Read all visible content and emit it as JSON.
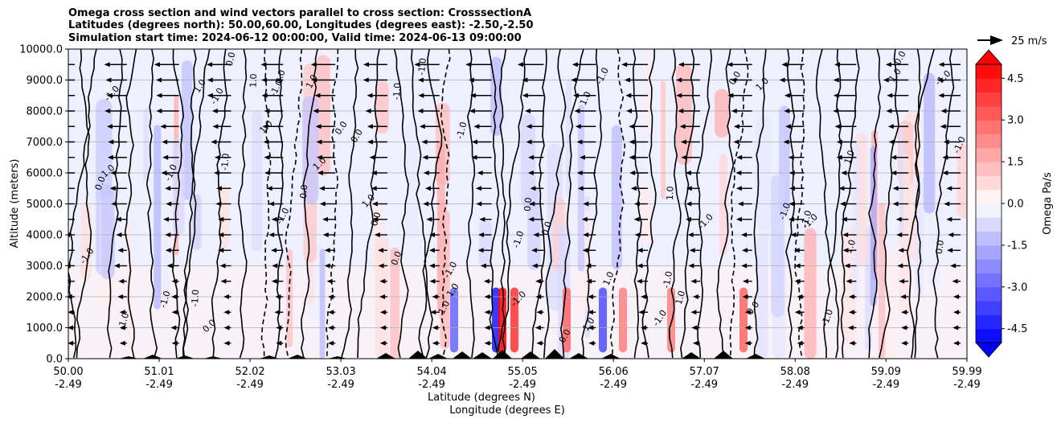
{
  "title_lines": [
    "Omega cross section and wind vectors parallel to cross section: CrosssectionA",
    "Latitudes (degrees north): 50.00,60.00, Longitudes (degrees east): -2.50,-2.50",
    "Simulation start time: 2024-06-12 00:00:00, Valid time: 2024-06-13 09:00:00"
  ],
  "chart_data": {
    "type": "heatmap",
    "subtype": "cross-section contour with wind vectors",
    "y_axis": {
      "label": "Altitude (meters)",
      "range": [
        0,
        10000
      ],
      "ticks": [
        "0.0",
        "1000.0",
        "2000.0",
        "3000.0",
        "4000.0",
        "5000.0",
        "6000.0",
        "7000.0",
        "8000.0",
        "9000.0",
        "10000.0"
      ],
      "tick_values": [
        0,
        1000,
        2000,
        3000,
        4000,
        5000,
        6000,
        7000,
        8000,
        9000,
        10000
      ],
      "grid": true
    },
    "x_axis": {
      "label_line1": "Latitude (degrees N)",
      "label_line2": "Longitude (degrees E)",
      "range": [
        50.0,
        59.99
      ],
      "tick_values": [
        50.0,
        51.01,
        52.02,
        53.03,
        54.04,
        55.05,
        56.06,
        57.07,
        58.08,
        59.09,
        59.99
      ],
      "lat_labels": [
        "50.00",
        "51.01",
        "52.02",
        "53.03",
        "54.04",
        "55.05",
        "56.06",
        "57.07",
        "58.08",
        "59.09",
        "59.99"
      ],
      "lon_labels": [
        "-2.49",
        "-2.49",
        "-2.49",
        "-2.49",
        "-2.49",
        "-2.49",
        "-2.49",
        "-2.49",
        "-2.49",
        "-2.49",
        "-2.49"
      ]
    },
    "colorbar": {
      "label": "Omega Pa/s",
      "range": [
        -5.0,
        5.0
      ],
      "ticks": [
        "-4.5",
        "-3.0",
        "-1.5",
        "0.0",
        "1.5",
        "3.0",
        "4.5"
      ],
      "tick_values": [
        -4.5,
        -3.0,
        -1.5,
        0.0,
        1.5,
        3.0,
        4.5
      ],
      "extend": "both",
      "cmap": "bwr"
    },
    "quiver_key": {
      "label": "25 m/s",
      "speed": 25
    },
    "contour_labels": [
      "0.0",
      "1.0",
      "-1.0"
    ],
    "colors": {
      "positive": "#ff0000",
      "negative": "#0000ff",
      "neutral": "#ffffff",
      "contour": "#000000",
      "terrain": "#000000"
    }
  }
}
